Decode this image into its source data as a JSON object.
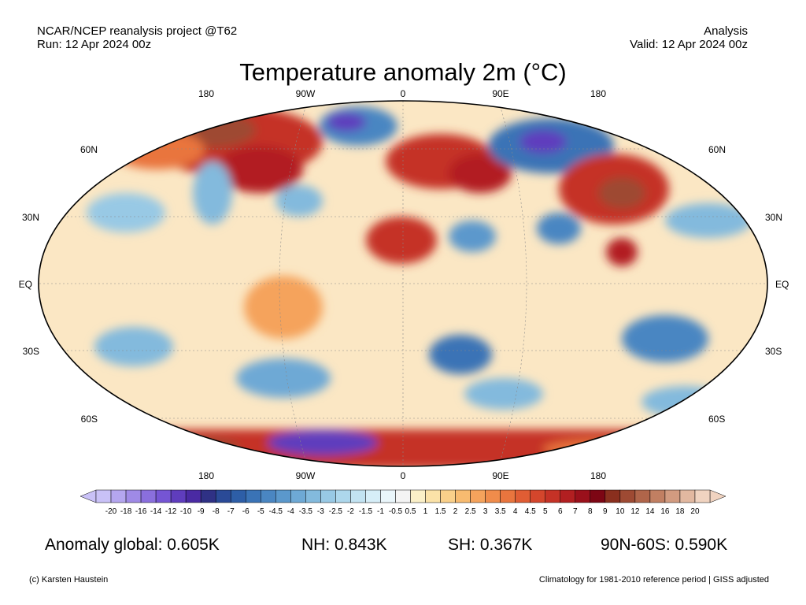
{
  "header": {
    "source": "NCAR/NCEP reanalysis project @T62",
    "run": "Run: 12 Apr 2024 00z",
    "mode": "Analysis",
    "valid": "Valid: 12 Apr 2024 00z"
  },
  "title": "Temperature anomaly 2m (°C)",
  "axes": {
    "lon_top": [
      "180",
      "90W",
      "0",
      "90E",
      "180"
    ],
    "lon_bottom": [
      "180",
      "90W",
      "0",
      "90E",
      "180"
    ],
    "lat_left": [
      "60N",
      "30N",
      "EQ",
      "30S",
      "60S"
    ],
    "lat_right": [
      "60N",
      "30N",
      "EQ",
      "30S",
      "60S"
    ]
  },
  "colorbar": {
    "labels": [
      "-20",
      "-18",
      "-16",
      "-14",
      "-12",
      "-10",
      "-9",
      "-8",
      "-7",
      "-6",
      "-5",
      "-4.5",
      "-4",
      "-3.5",
      "-3",
      "-2.5",
      "-2",
      "-1.5",
      "-1",
      "-0.5",
      "0.5",
      "1",
      "1.5",
      "2",
      "2.5",
      "3",
      "3.5",
      "4",
      "4.5",
      "5",
      "6",
      "7",
      "8",
      "9",
      "10",
      "12",
      "14",
      "16",
      "18",
      "20"
    ],
    "colors": [
      "#c9c1f7",
      "#b4a6ef",
      "#9f8ae6",
      "#8a6fdd",
      "#7555d4",
      "#5f3dbd",
      "#4a2aa3",
      "#2f3185",
      "#2a4a97",
      "#2d5ea7",
      "#3a73b6",
      "#4a86c2",
      "#5b98cc",
      "#6ea9d5",
      "#83badd",
      "#98c9e5",
      "#add7ec",
      "#c2e3f2",
      "#d6eef8",
      "#eaf6fb",
      "#f4f4f4",
      "#fbf0c8",
      "#fbe2a8",
      "#fad08a",
      "#f8bb70",
      "#f5a35c",
      "#f08c4b",
      "#e9753e",
      "#e05d34",
      "#d4462c",
      "#c53226",
      "#b21f21",
      "#9a101b",
      "#7d0614",
      "#8a2f1e",
      "#9e4a33",
      "#b0654a",
      "#c17f62",
      "#d29b80",
      "#e2b8a0",
      "#f0d3c0"
    ]
  },
  "stats": {
    "global": "Anomaly global: 0.605K",
    "nh": "NH: 0.843K",
    "sh": "SH: 0.367K",
    "arctic": "90N-60S: 0.590K"
  },
  "footer": {
    "credit": "(c) Karsten Haustein",
    "climatology": "Climatology for 1981-2010 reference period | GISS adjusted"
  }
}
